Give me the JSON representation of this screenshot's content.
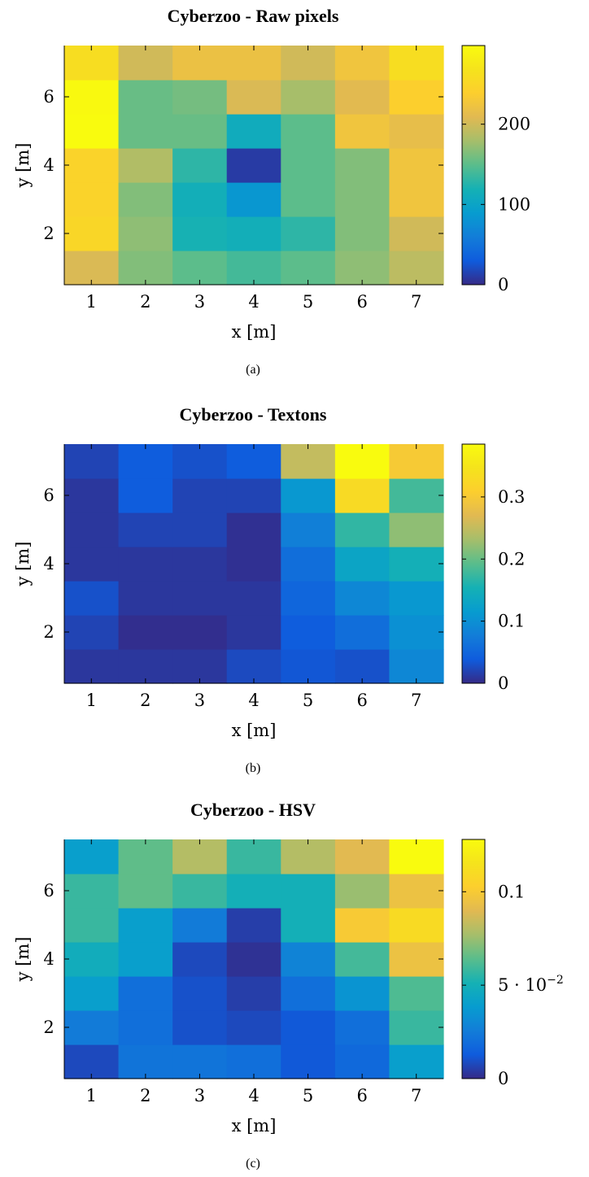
{
  "chart_data": [
    {
      "type": "heatmap",
      "title": "Cyberzoo - Raw pixels",
      "xlabel": "x [m]",
      "ylabel": "y [m]",
      "caption": "(a)",
      "x": [
        1,
        2,
        3,
        4,
        5,
        6,
        7
      ],
      "y": [
        1,
        2,
        3,
        4,
        5,
        6,
        7
      ],
      "xlim": [
        0.5,
        7.5
      ],
      "ylim": [
        0.5,
        7.5
      ],
      "xticks": [
        "1",
        "2",
        "3",
        "4",
        "5",
        "6",
        "7"
      ],
      "yticks": [
        {
          "value": 2,
          "label": "2"
        },
        {
          "value": 4,
          "label": "4"
        },
        {
          "value": 6,
          "label": "6"
        }
      ],
      "colorbar": {
        "min": 0,
        "max": 298,
        "ticks": [
          {
            "value": 0,
            "label": "0"
          },
          {
            "value": 100,
            "label": "100"
          },
          {
            "value": 200,
            "label": "200"
          }
        ]
      },
      "colormap": "parula",
      "values": [
        [
          205,
          165,
          150,
          140,
          150,
          170,
          190
        ],
        [
          250,
          170,
          120,
          115,
          130,
          165,
          200
        ],
        [
          245,
          165,
          115,
          85,
          150,
          165,
          225
        ],
        [
          245,
          185,
          130,
          10,
          150,
          165,
          225
        ],
        [
          298,
          155,
          155,
          110,
          150,
          225,
          215
        ],
        [
          295,
          155,
          160,
          205,
          180,
          210,
          240
        ],
        [
          260,
          200,
          220,
          220,
          200,
          225,
          260
        ]
      ]
    },
    {
      "type": "heatmap",
      "title": "Cyberzoo - Textons",
      "xlabel": "x [m]",
      "ylabel": "y [m]",
      "caption": "(b)",
      "x": [
        1,
        2,
        3,
        4,
        5,
        6,
        7
      ],
      "y": [
        1,
        2,
        3,
        4,
        5,
        6,
        7
      ],
      "xlim": [
        0.5,
        7.5
      ],
      "ylim": [
        0.5,
        7.5
      ],
      "xticks": [
        "1",
        "2",
        "3",
        "4",
        "5",
        "6",
        "7"
      ],
      "yticks": [
        {
          "value": 2,
          "label": "2"
        },
        {
          "value": 4,
          "label": "4"
        },
        {
          "value": 6,
          "label": "6"
        }
      ],
      "colorbar": {
        "min": 0,
        "max": 0.385,
        "ticks": [
          {
            "value": 0,
            "label": "0"
          },
          {
            "value": 0.1,
            "label": "0.1"
          },
          {
            "value": 0.2,
            "label": "0.2"
          },
          {
            "value": 0.3,
            "label": "0.3"
          }
        ]
      },
      "colormap": "parula",
      "values": [
        [
          0.01,
          0.01,
          0.01,
          0.025,
          0.035,
          0.03,
          0.09
        ],
        [
          0.02,
          0.003,
          0.003,
          0.01,
          0.04,
          0.06,
          0.1
        ],
        [
          0.03,
          0.01,
          0.01,
          0.01,
          0.05,
          0.09,
          0.11
        ],
        [
          0.01,
          0.01,
          0.01,
          0.005,
          0.06,
          0.13,
          0.15
        ],
        [
          0.01,
          0.02,
          0.02,
          0.005,
          0.08,
          0.17,
          0.22
        ],
        [
          0.01,
          0.04,
          0.02,
          0.02,
          0.11,
          0.33,
          0.18
        ],
        [
          0.02,
          0.04,
          0.03,
          0.04,
          0.25,
          0.385,
          0.3
        ]
      ]
    },
    {
      "type": "heatmap",
      "title": "Cyberzoo - HSV",
      "xlabel": "x [m]",
      "ylabel": "y [m]",
      "caption": "(c)",
      "x": [
        1,
        2,
        3,
        4,
        5,
        6,
        7
      ],
      "y": [
        1,
        2,
        3,
        4,
        5,
        6,
        7
      ],
      "xlim": [
        0.5,
        7.5
      ],
      "ylim": [
        0.5,
        7.5
      ],
      "xticks": [
        "1",
        "2",
        "3",
        "4",
        "5",
        "6",
        "7"
      ],
      "yticks": [
        {
          "value": 2,
          "label": "2"
        },
        {
          "value": 4,
          "label": "4"
        },
        {
          "value": 6,
          "label": "6"
        }
      ],
      "colorbar": {
        "min": 0,
        "max": 0.128,
        "ticks": [
          {
            "value": 0,
            "label": "0"
          },
          {
            "value": 0.05,
            "label": "5 · 10",
            "superscript": "−2"
          },
          {
            "value": 0.1,
            "label": "0.1"
          }
        ]
      },
      "colormap": "parula",
      "values": [
        [
          0.008,
          0.022,
          0.022,
          0.02,
          0.012,
          0.018,
          0.04
        ],
        [
          0.025,
          0.02,
          0.01,
          0.008,
          0.012,
          0.02,
          0.058
        ],
        [
          0.04,
          0.02,
          0.01,
          0.005,
          0.02,
          0.035,
          0.062
        ],
        [
          0.048,
          0.04,
          0.008,
          0.002,
          0.028,
          0.06,
          0.095
        ],
        [
          0.058,
          0.04,
          0.025,
          0.005,
          0.05,
          0.1,
          0.11
        ],
        [
          0.058,
          0.065,
          0.058,
          0.05,
          0.05,
          0.075,
          0.095
        ],
        [
          0.04,
          0.065,
          0.08,
          0.058,
          0.08,
          0.09,
          0.128
        ]
      ]
    }
  ]
}
